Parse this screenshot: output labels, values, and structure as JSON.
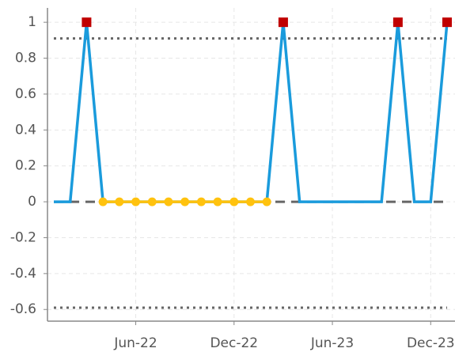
{
  "chart_data": {
    "type": "line",
    "x": [
      "2022-01",
      "2022-02",
      "2022-03",
      "2022-04",
      "2022-05",
      "2022-06",
      "2022-07",
      "2022-08",
      "2022-09",
      "2022-10",
      "2022-11",
      "2022-12",
      "2023-01",
      "2023-02",
      "2023-03",
      "2023-04",
      "2023-05",
      "2023-06",
      "2023-07",
      "2023-08",
      "2023-09",
      "2023-10",
      "2023-11",
      "2023-12",
      "2024-01"
    ],
    "series": [
      {
        "color": "#1a9bdc",
        "marker": "none",
        "values": [
          0,
          0,
          1,
          0,
          0,
          0,
          0,
          0,
          0,
          0,
          0,
          0,
          0,
          0,
          1,
          0,
          0,
          0,
          0,
          0,
          0,
          1,
          0,
          0,
          1
        ]
      },
      {
        "color": "#ffc20e",
        "marker": "circle",
        "values": [
          null,
          null,
          null,
          0,
          0,
          0,
          0,
          0,
          0,
          0,
          0,
          0,
          0,
          0,
          null,
          null,
          null,
          null,
          null,
          null,
          null,
          null,
          null,
          null,
          null
        ]
      },
      {
        "color": "#c00000",
        "marker": "square",
        "line": false,
        "values": [
          null,
          null,
          1,
          null,
          null,
          null,
          null,
          null,
          null,
          null,
          null,
          null,
          null,
          null,
          1,
          null,
          null,
          null,
          null,
          null,
          null,
          1,
          null,
          null,
          1
        ]
      }
    ],
    "xlim": [
      "2022-01",
      "2024-01"
    ],
    "xticks": [
      {
        "value": "2022-06",
        "label": "Jun-22"
      },
      {
        "value": "2022-12",
        "label": "Dec-22"
      },
      {
        "value": "2023-06",
        "label": "Jun-23"
      },
      {
        "value": "2023-12",
        "label": "Dec-23"
      }
    ],
    "ylim": [
      -0.665,
      1.08
    ],
    "yticks": [
      1,
      0.8,
      0.6,
      0.4,
      0.2,
      0,
      -0.2,
      -0.4,
      -0.6
    ],
    "hlines": [
      {
        "value": 0.91,
        "style": "dotted"
      },
      {
        "value": -0.59,
        "style": "dotted"
      },
      {
        "value": 0,
        "style": "dashed"
      }
    ],
    "grid": true
  }
}
